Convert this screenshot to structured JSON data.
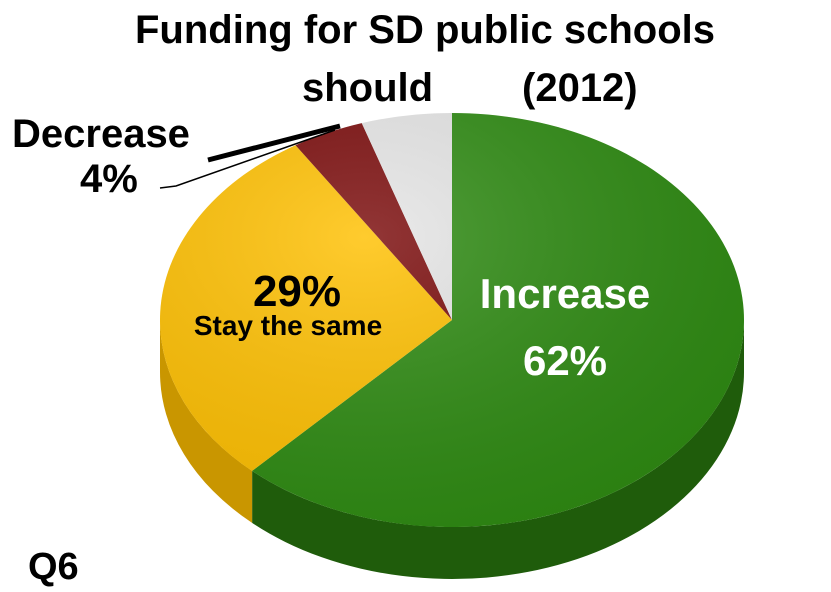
{
  "title": {
    "line1": "Funding for SD public schools",
    "line2_left": "should",
    "line2_right": "(2012)"
  },
  "question_label": "Q6",
  "colors": {
    "increase": "#2e8b12",
    "increase_side": "#1f5c0b",
    "stay": "#ffc000",
    "stay_side": "#c99600",
    "decrease": "#7a0a0a",
    "decrease_side": "#520606",
    "other": "#e6e6e6",
    "other_side": "#b8b8b8"
  },
  "chart_data": {
    "type": "pie",
    "title": "Funding for SD public schools should (2012)",
    "slices": [
      {
        "label": "Increase",
        "value": 62,
        "display": "62%"
      },
      {
        "label": "Stay the same",
        "value": 29,
        "display": "29%"
      },
      {
        "label": "Decrease",
        "value": 4,
        "display": "4%"
      },
      {
        "label": "",
        "value": 5,
        "display": ""
      }
    ]
  }
}
